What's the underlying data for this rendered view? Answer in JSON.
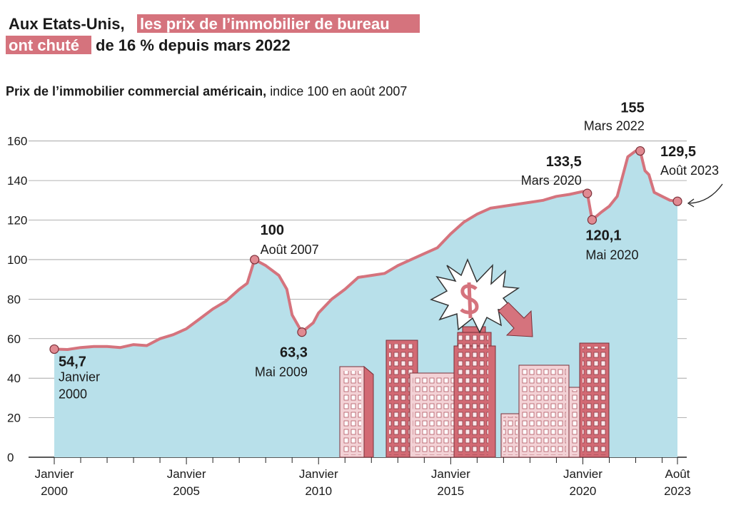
{
  "chart_data": {
    "type": "area",
    "title_parts": [
      "Aux Etats-Unis,",
      "les prix de l’immobilier de bureau",
      "ont chuté",
      "de 16 % depuis mars 2022"
    ],
    "subtitle_bold": "Prix de l’immobilier commercial américain,",
    "subtitle": "indice 100 en août 2007",
    "x": [
      2000,
      2000.5,
      2001,
      2001.5,
      2002,
      2002.5,
      2003,
      2003.5,
      2004,
      2004.5,
      2005,
      2005.5,
      2006,
      2006.5,
      2007,
      2007.3,
      2007.58,
      2008,
      2008.5,
      2008.8,
      2009,
      2009.37,
      2009.8,
      2010,
      2010.5,
      2011,
      2011.5,
      2012,
      2012.5,
      2013,
      2013.5,
      2014,
      2014.5,
      2015,
      2015.5,
      2016,
      2016.5,
      2017,
      2017.5,
      2018,
      2018.5,
      2019,
      2019.5,
      2020,
      2020.17,
      2020.35,
      2020.7,
      2021,
      2021.3,
      2021.5,
      2021.7,
      2022,
      2022.17,
      2022.35,
      2022.5,
      2022.7,
      2023,
      2023.3,
      2023.58
    ],
    "series": [
      {
        "color": "#d5737d",
        "fill": "#b8e0ea",
        "values": [
          54.7,
          54.5,
          55.5,
          56,
          56,
          55.5,
          57,
          56.5,
          60,
          62,
          65,
          70,
          75,
          79,
          85,
          88,
          100,
          97,
          92,
          85,
          72,
          63.3,
          68,
          73,
          80,
          85,
          91,
          92,
          93,
          97,
          100,
          103,
          106,
          113,
          119,
          123,
          126,
          127,
          128,
          129,
          130,
          132,
          133,
          134.5,
          133.5,
          120.1,
          124,
          127,
          132,
          142,
          152,
          155,
          155,
          145,
          143,
          134,
          132,
          130,
          129.5
        ]
      }
    ],
    "annotations": [
      {
        "x": 2000,
        "y": 54.7,
        "label": "54,7",
        "date": [
          "Janvier",
          "2000"
        ]
      },
      {
        "x": 2007.58,
        "y": 100,
        "label": "100",
        "date": [
          "Août 2007"
        ]
      },
      {
        "x": 2009.37,
        "y": 63.3,
        "label": "63,3",
        "date": [
          "Mai 2009"
        ]
      },
      {
        "x": 2020.17,
        "y": 133.5,
        "label": "133,5",
        "date": [
          "Mars 2020"
        ]
      },
      {
        "x": 2020.35,
        "y": 120.1,
        "label": "120,1",
        "date": [
          "Mai 2020"
        ]
      },
      {
        "x": 2022.17,
        "y": 155,
        "label": "155",
        "date": [
          "Mars 2022"
        ]
      },
      {
        "x": 2023.58,
        "y": 129.5,
        "label": "129,5",
        "date": [
          "Août 2023"
        ]
      }
    ],
    "xlim": [
      2000,
      2023.58
    ],
    "xticks": [
      {
        "value": 2000,
        "label": [
          "Janvier",
          "2000"
        ]
      },
      {
        "value": 2005,
        "label": [
          "Janvier",
          "2005"
        ]
      },
      {
        "value": 2010,
        "label": [
          "Janvier",
          "2010"
        ]
      },
      {
        "value": 2015,
        "label": [
          "Janvier",
          "2015"
        ]
      },
      {
        "value": 2020,
        "label": [
          "Janvier",
          "2020"
        ]
      },
      {
        "value": 2023.58,
        "label": [
          "Août",
          "2023"
        ]
      }
    ],
    "xminorticks": [
      2001,
      2002,
      2003,
      2004,
      2006,
      2007,
      2008,
      2009,
      2011,
      2012,
      2013,
      2014,
      2016,
      2017,
      2018,
      2019,
      2021,
      2022,
      2023
    ],
    "ylim": [
      0,
      170
    ],
    "yticks": [
      0,
      20,
      40,
      60,
      80,
      100,
      120,
      140,
      160
    ],
    "grid": true
  }
}
